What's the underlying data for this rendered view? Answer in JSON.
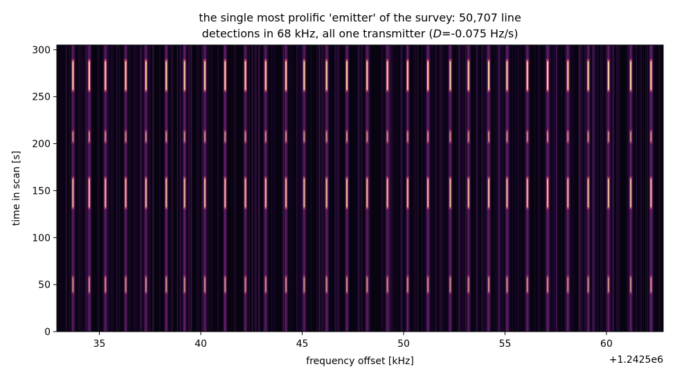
{
  "chart_data": {
    "type": "heatmap",
    "title_line1": "the single most prolific 'emitter' of the survey: 50,707 line",
    "title_line2": "detections in 68 kHz, all one transmitter (D=-0.075 Hz/s)",
    "title_line2_parts": [
      "detections in 68 kHz, all one transmitter (",
      "D",
      "=-0.075 Hz/s)"
    ],
    "xlabel": "frequency offset [kHz]",
    "ylabel": "time in scan [s]",
    "x_offset_label": "+1.2425e6",
    "xlim": [
      32.9,
      62.8
    ],
    "ylim": [
      0,
      305
    ],
    "x_ticks": [
      35,
      40,
      45,
      50,
      55,
      60
    ],
    "x_tick_labels": [
      "35",
      "40",
      "45",
      "50",
      "55",
      "60"
    ],
    "y_ticks": [
      0,
      50,
      100,
      150,
      200,
      250,
      300
    ],
    "y_tick_labels": [
      "0",
      "50",
      "100",
      "150",
      "200",
      "250",
      "300"
    ],
    "colormap": "magma",
    "background_color": "#07030f",
    "line_color": "#fbd6a8",
    "emission_lines_khz": [
      33.7,
      34.5,
      35.3,
      36.3,
      37.3,
      38.3,
      39.2,
      40.2,
      41.2,
      42.2,
      43.2,
      44.2,
      45.1,
      46.2,
      47.2,
      48.2,
      49.2,
      50.2,
      51.2,
      52.3,
      53.2,
      54.2,
      55.1,
      56.1,
      57.1,
      58.1,
      59.1,
      60.1,
      61.2,
      62.2
    ],
    "bright_bands_s": [
      [
        255,
        290
      ],
      [
        130,
        165
      ],
      [
        40,
        60
      ],
      [
        200,
        215
      ]
    ]
  }
}
